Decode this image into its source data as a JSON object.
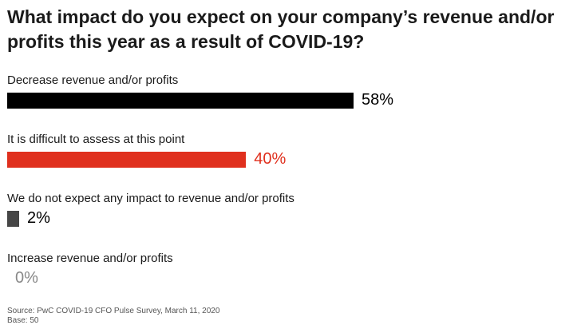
{
  "chart_data": {
    "type": "bar",
    "orientation": "horizontal",
    "title": "What impact do you expect on your company’s revenue and/or profits this year as a result of COVID-19?",
    "categories": [
      "Decrease revenue and/or profits",
      "It is difficult to assess at this point",
      "We do not expect any impact to revenue and/or profits",
      "Increase revenue and/or profits"
    ],
    "values": [
      58,
      40,
      2,
      0
    ],
    "value_labels": [
      "58%",
      "40%",
      "2%",
      "0%"
    ],
    "bar_colors": [
      "#000000",
      "#e0301e",
      "#464646",
      "#464646"
    ],
    "value_label_colors": [
      "#000000",
      "#e0301e",
      "#000000",
      "#888888"
    ],
    "xlim": [
      0,
      100
    ],
    "grid": false,
    "legend": "none"
  },
  "footer": {
    "source": "Source: PwC COVID-19 CFO Pulse Survey, March 11, 2020",
    "base": "Base: 50"
  }
}
